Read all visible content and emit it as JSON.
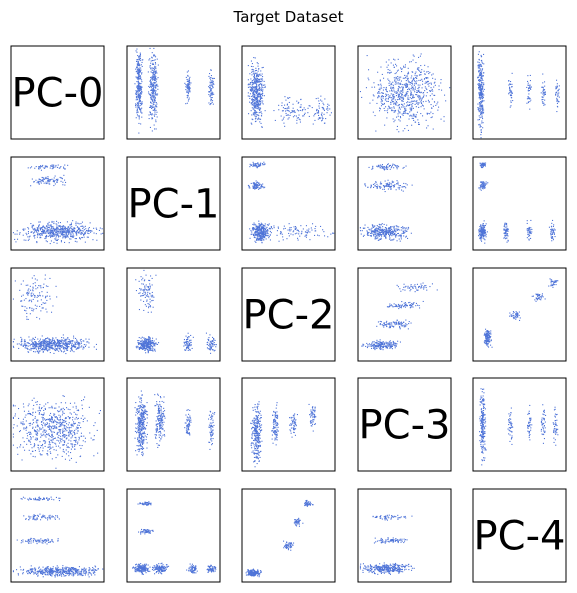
{
  "title": "Target Dataset",
  "point_color": "#4f74d8",
  "chart_data": {
    "type": "scatter-matrix",
    "title": "Target Dataset",
    "components": [
      "PC-0",
      "PC-1",
      "PC-2",
      "PC-3",
      "PC-4"
    ],
    "diagonal_labels": [
      "PC-0",
      "PC-1",
      "PC-2",
      "PC-3",
      "PC-4"
    ],
    "axes_ticks": "none",
    "grid": false,
    "note": "Off-diagonal panels are dense scatter plots of principal component pairs; point positions are not recoverable as exact values."
  }
}
